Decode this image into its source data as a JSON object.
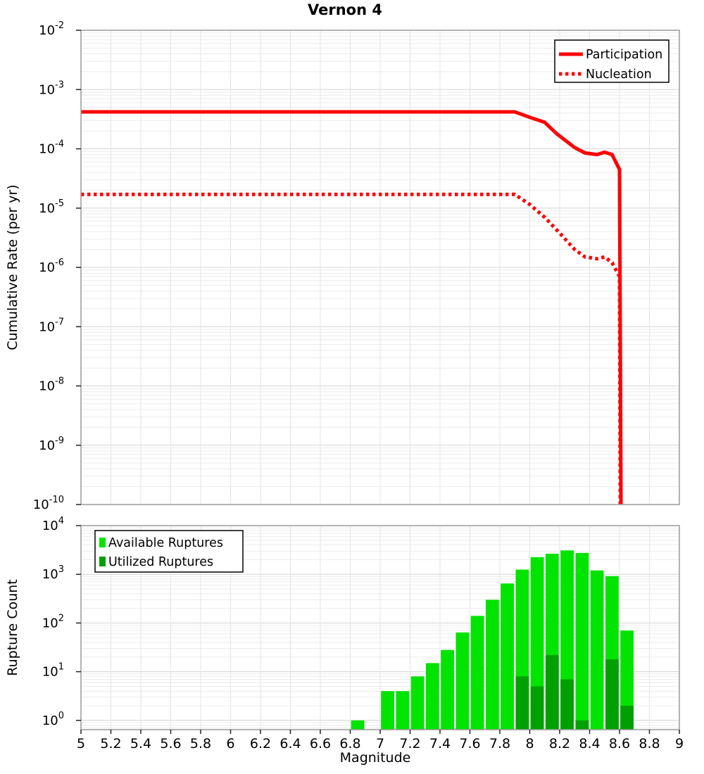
{
  "title": "Vernon 4",
  "chart_data": [
    {
      "type": "line",
      "title": "Vernon 4",
      "xlabel": "Magnitude",
      "ylabel": "Cumulative Rate (per yr)",
      "xlim": [
        5,
        9
      ],
      "ylim_log10": [
        -10,
        -2
      ],
      "grid": true,
      "x_tick_step": 0.2,
      "y_tick_exponents": [
        -2,
        -3,
        -4,
        -5,
        -6,
        -7,
        -8,
        -9,
        -10
      ],
      "legend": {
        "position": "top-right",
        "entries": [
          {
            "label": "Participation",
            "line": "solid",
            "color": "#ff0000"
          },
          {
            "label": "Nucleation",
            "line": "dotted",
            "color": "#ff0000"
          }
        ]
      },
      "series": [
        {
          "name": "Participation",
          "color": "#ff0000",
          "style": "solid",
          "points": [
            [
              5.0,
              0.00042
            ],
            [
              7.9,
              0.00042
            ],
            [
              8.0,
              0.00034
            ],
            [
              8.1,
              0.00028
            ],
            [
              8.18,
              0.00018
            ],
            [
              8.3,
              0.000105
            ],
            [
              8.37,
              8.5e-05
            ],
            [
              8.45,
              8e-05
            ],
            [
              8.5,
              8.8e-05
            ],
            [
              8.55,
              8e-05
            ],
            [
              8.6,
              4.5e-05
            ],
            [
              8.61,
              1e-10
            ]
          ]
        },
        {
          "name": "Nucleation",
          "color": "#ff0000",
          "style": "dotted",
          "points": [
            [
              5.0,
              1.7e-05
            ],
            [
              7.9,
              1.7e-05
            ],
            [
              8.0,
              1.15e-05
            ],
            [
              8.1,
              7e-06
            ],
            [
              8.2,
              3.8e-06
            ],
            [
              8.3,
              2e-06
            ],
            [
              8.37,
              1.5e-06
            ],
            [
              8.45,
              1.4e-06
            ],
            [
              8.5,
              1.5e-06
            ],
            [
              8.55,
              1.2e-06
            ],
            [
              8.6,
              7e-07
            ],
            [
              8.605,
              1e-10
            ]
          ]
        }
      ]
    },
    {
      "type": "bar",
      "xlabel": "Magnitude",
      "ylabel": "Rupture Count",
      "xlim": [
        5,
        9
      ],
      "ylim_log10": [
        -0.19,
        4.0
      ],
      "grid": true,
      "bin_width": 0.1,
      "bin_starts": [
        6.8,
        6.9,
        7.0,
        7.1,
        7.2,
        7.3,
        7.4,
        7.5,
        7.6,
        7.7,
        7.8,
        7.9,
        8.0,
        8.1,
        8.2,
        8.3,
        8.4,
        8.5,
        8.6
      ],
      "x_ticks": [
        {
          "v": 5,
          "label": "5"
        },
        {
          "v": 5.2,
          "label": "5.2"
        },
        {
          "v": 5.4,
          "label": "5.4"
        },
        {
          "v": 5.6,
          "label": "5.6"
        },
        {
          "v": 5.8,
          "label": "5.8"
        },
        {
          "v": 6,
          "label": "6"
        },
        {
          "v": 6.2,
          "label": "6.2"
        },
        {
          "v": 6.4,
          "label": "6.4"
        },
        {
          "v": 6.6,
          "label": "6.6"
        },
        {
          "v": 6.8,
          "label": "6.8"
        },
        {
          "v": 7,
          "label": "7"
        },
        {
          "v": 7.2,
          "label": "7.2"
        },
        {
          "v": 7.4,
          "label": "7.4"
        },
        {
          "v": 7.6,
          "label": "7.6"
        },
        {
          "v": 7.8,
          "label": "7.8"
        },
        {
          "v": 8,
          "label": "8"
        },
        {
          "v": 8.2,
          "label": "8.2"
        },
        {
          "v": 8.4,
          "label": "8.4"
        },
        {
          "v": 8.6,
          "label": "8.6"
        },
        {
          "v": 8.8,
          "label": "8.8"
        },
        {
          "v": 9,
          "label": "9"
        }
      ],
      "y_tick_exponents": [
        4,
        3,
        2,
        1,
        0
      ],
      "legend": {
        "position": "top-left",
        "entries": [
          {
            "label": "Available Ruptures",
            "swatch": "#00e400"
          },
          {
            "label": "Utilized Ruptures",
            "swatch": "#00a000"
          }
        ]
      },
      "series": [
        {
          "name": "Available Ruptures",
          "color": "#00e400",
          "values": [
            1,
            0,
            4,
            4,
            8,
            15,
            28,
            64,
            140,
            300,
            650,
            1250,
            2250,
            2650,
            3100,
            2750,
            1200,
            920,
            70
          ]
        },
        {
          "name": "Utilized Ruptures",
          "color": "#00a000",
          "values": [
            0,
            0,
            0,
            0,
            0,
            0,
            0,
            0,
            0,
            0,
            0,
            8,
            5,
            22,
            7,
            1,
            0,
            18,
            2
          ]
        }
      ]
    }
  ],
  "colors": {
    "line_red": "#ff0000",
    "available_green": "#00e400",
    "utilized_green": "#00a000",
    "grid_major": "#d4d4d4",
    "grid_minor": "#ececec",
    "plot_border": "#9a9a9a"
  }
}
